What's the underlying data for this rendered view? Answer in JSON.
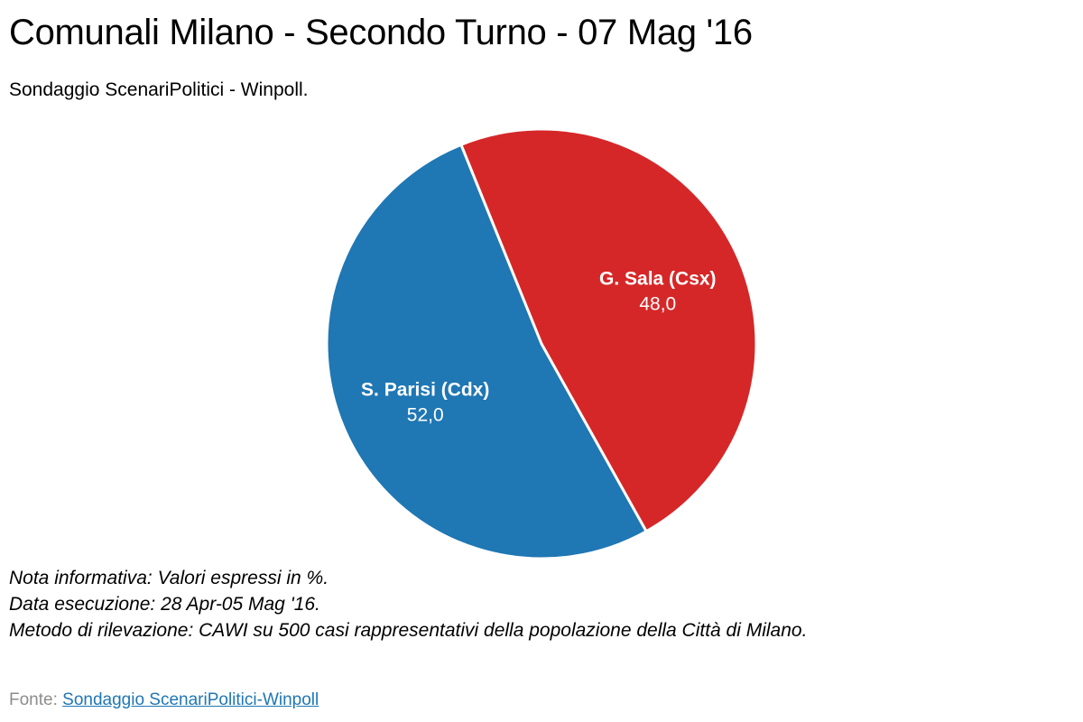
{
  "header": {
    "title": "Comunali Milano - Secondo Turno - 07 Mag '16",
    "subtitle": "Sondaggio ScenariPolitici - Winpoll."
  },
  "chart_data": {
    "type": "pie",
    "title": "Comunali Milano - Secondo Turno - 07 Mag '16",
    "subtitle": "Sondaggio ScenariPolitici - Winpoll.",
    "unit": "%",
    "slices": [
      {
        "label": "G. Sala (Csx)",
        "value": 48.0,
        "value_label": "48,0",
        "color": "#d62728"
      },
      {
        "label": "S. Parisi (Cdx)",
        "value": 52.0,
        "value_label": "52,0",
        "color": "#1f77b4"
      }
    ],
    "separator_color": "#ffffff",
    "legend": "none"
  },
  "notes": {
    "line1": "Nota informativa: Valori espressi in %.",
    "line2": "Data esecuzione: 28 Apr-05 Mag '16.",
    "line3": "Metodo di rilevazione: CAWI su 500 casi rappresentativi della popolazione della Città di Milano."
  },
  "source": {
    "prefix": "Fonte: ",
    "link_text": "Sondaggio ScenariPolitici-Winpoll"
  }
}
